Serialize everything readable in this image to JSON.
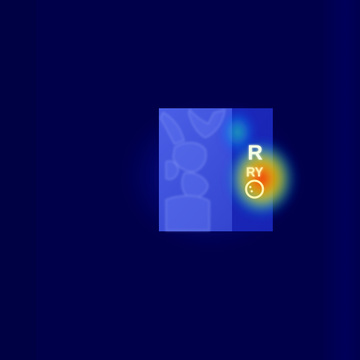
{
  "image": {
    "description_kind": "heatmap-overlay-xray",
    "marker": {
      "letter": "R",
      "sub_label": "RY"
    },
    "colors": {
      "background": "#000046",
      "heat_low": "#0000ff",
      "heat_mid": "#00ff80",
      "heat_high": "#ff2000"
    }
  }
}
